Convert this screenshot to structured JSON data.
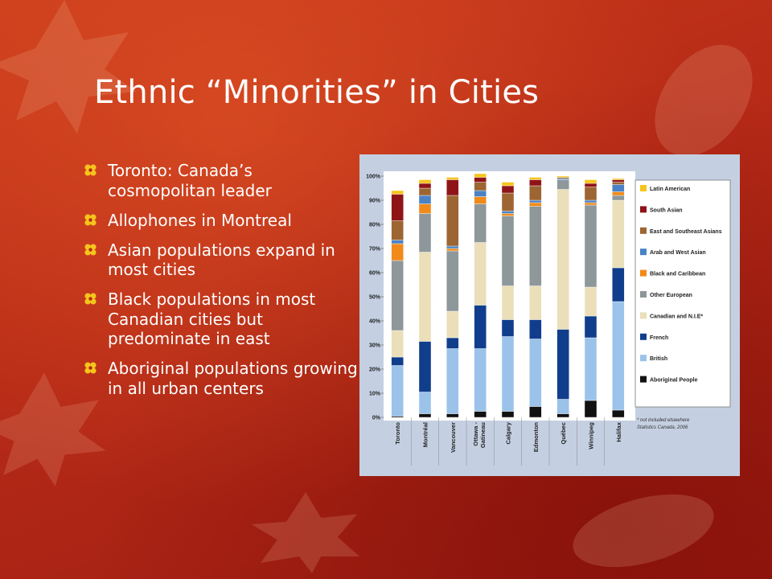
{
  "slide": {
    "title": "Ethnic “Minorities” in Cities",
    "bullets": [
      "Toronto: Canada’s cosmopolitan leader",
      "Allophones in Montreal",
      "Asian populations expand in most cities",
      "Black populations in most Canadian cities but predominate in east",
      "Aboriginal populations growing in all urban centers"
    ],
    "colors": {
      "accent": "#f6c51c",
      "background": "#b62a17",
      "text": "#ffffff"
    }
  },
  "chart_data": {
    "type": "bar",
    "stacked": true,
    "categories": [
      "Toronto",
      "Montréal",
      "Vancouver",
      "Ottawa - Gatineau",
      "Calgary",
      "Edmonton",
      "Québec",
      "Winnipeg",
      "Halifax"
    ],
    "ylim": [
      0,
      100
    ],
    "yticks": [
      "0%",
      "10%",
      "20%",
      "30%",
      "40%",
      "50%",
      "60%",
      "70%",
      "80%",
      "90%",
      "100%"
    ],
    "legend_position": "right",
    "footnote": [
      "* not included elsewhere",
      "Statistics Canada, 2006"
    ],
    "series": [
      {
        "name": "Aboriginal People",
        "color": "#111111",
        "values": [
          0.5,
          1.5,
          1.5,
          2.5,
          2.5,
          4.5,
          1.5,
          7,
          3
        ]
      },
      {
        "name": "British",
        "color": "#9bc3ea",
        "values": [
          21,
          9,
          27,
          26,
          31,
          28,
          6,
          26,
          45
        ]
      },
      {
        "name": "French",
        "color": "#103e8c",
        "values": [
          3.5,
          21,
          4.5,
          18,
          7,
          8,
          29,
          9,
          14
        ]
      },
      {
        "name": "Canadian and N.I.E*",
        "color": "#eadfb9",
        "values": [
          11,
          37,
          11,
          26,
          14,
          14,
          58,
          12,
          28
        ]
      },
      {
        "name": "Other European",
        "color": "#8e979a",
        "values": [
          29,
          16,
          25,
          16,
          29,
          33,
          4,
          34,
          2
        ]
      },
      {
        "name": "Black and Caribbean",
        "color": "#f18a1a",
        "values": [
          7,
          4,
          1,
          3,
          1,
          1.5,
          0,
          1,
          1.5
        ]
      },
      {
        "name": "Arab and West Asian",
        "color": "#4a82c6",
        "values": [
          1.5,
          3.5,
          1,
          2.5,
          1,
          1,
          0.5,
          1,
          3
        ]
      },
      {
        "name": "East and Southeast Asians",
        "color": "#9c6531",
        "values": [
          8,
          3,
          21,
          3.5,
          7.5,
          6,
          0.5,
          5.5,
          1
        ]
      },
      {
        "name": "South Asian",
        "color": "#8f1418",
        "values": [
          11,
          2,
          6.5,
          2,
          3,
          2.5,
          0,
          1.5,
          1
        ]
      },
      {
        "name": "Latin American",
        "color": "#f6c51c",
        "values": [
          1.5,
          1.5,
          1,
          1.5,
          1.5,
          1,
          0.5,
          1.5,
          0.5
        ]
      }
    ]
  }
}
